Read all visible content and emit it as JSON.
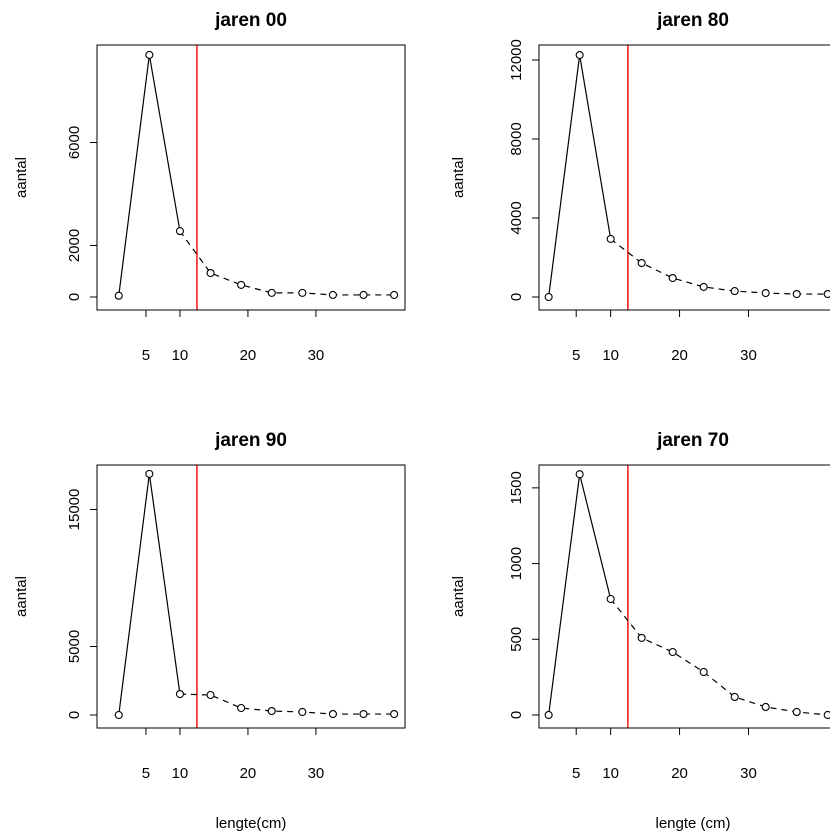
{
  "chart_data": [
    {
      "type": "line",
      "title": "jaren 00",
      "ylabel": "aantal",
      "x": [
        1,
        5.5,
        10,
        14.5,
        19,
        23.5,
        28,
        32.5,
        37,
        41.5
      ],
      "values": [
        50,
        9400,
        2560,
        930,
        470,
        160,
        160,
        80,
        80,
        80
      ],
      "color": "#000000",
      "dash_start": 10,
      "vline": 12.5,
      "vline_color": "#ff0000",
      "xlim": [
        -2.2,
        43.1
      ],
      "xticks": [
        5,
        10,
        20,
        30
      ],
      "ylim": [
        -505,
        9786
      ],
      "yticks": [
        0,
        2000,
        6000
      ]
    },
    {
      "type": "line",
      "title": "jaren 80",
      "ylabel": "aantal",
      "x": [
        1,
        5.5,
        10,
        14.5,
        19,
        23.5,
        28,
        32.5,
        37,
        41.5
      ],
      "values": [
        0,
        12250,
        2940,
        1720,
        960,
        510,
        300,
        200,
        150,
        150
      ],
      "color": "#000000",
      "dash_start": 10,
      "vline": 12.5,
      "vline_color": "#ff0000",
      "xlim": [
        -0.4,
        44.3
      ],
      "xticks": [
        5,
        10,
        20,
        30
      ],
      "ylim": [
        -658,
        12759
      ],
      "yticks": [
        0,
        4000,
        8000,
        12000
      ]
    },
    {
      "type": "line",
      "title": "jaren 90",
      "ylabel": "aantal",
      "xlabel": "lengte(cm)",
      "x": [
        1,
        5.5,
        10,
        14.5,
        19,
        23.5,
        28,
        32.5,
        37,
        41.5
      ],
      "values": [
        0,
        17600,
        1530,
        1460,
        510,
        290,
        220,
        70,
        70,
        70
      ],
      "color": "#000000",
      "dash_start": 10,
      "vline": 12.5,
      "vline_color": "#ff0000",
      "xlim": [
        -2.2,
        43.1
      ],
      "xticks": [
        5,
        10,
        20,
        30
      ],
      "ylim": [
        -949,
        18248
      ],
      "yticks": [
        0,
        5000,
        15000
      ]
    },
    {
      "type": "line",
      "title": "jaren 70",
      "ylabel": "aantal",
      "xlabel": "lengte (cm)",
      "x": [
        1,
        5.5,
        10,
        14.5,
        19,
        23.5,
        28,
        32.5,
        37,
        41.5
      ],
      "values": [
        0,
        1590,
        766,
        509,
        416,
        284,
        119,
        53,
        20,
        0
      ],
      "color": "#000000",
      "dash_start": 10,
      "vline": 12.5,
      "vline_color": "#ff0000",
      "xlim": [
        -0.4,
        44.3
      ],
      "xticks": [
        5,
        10,
        20,
        30
      ],
      "ylim": [
        -86,
        1651
      ],
      "yticks": [
        0,
        500,
        1000,
        1500
      ]
    }
  ]
}
